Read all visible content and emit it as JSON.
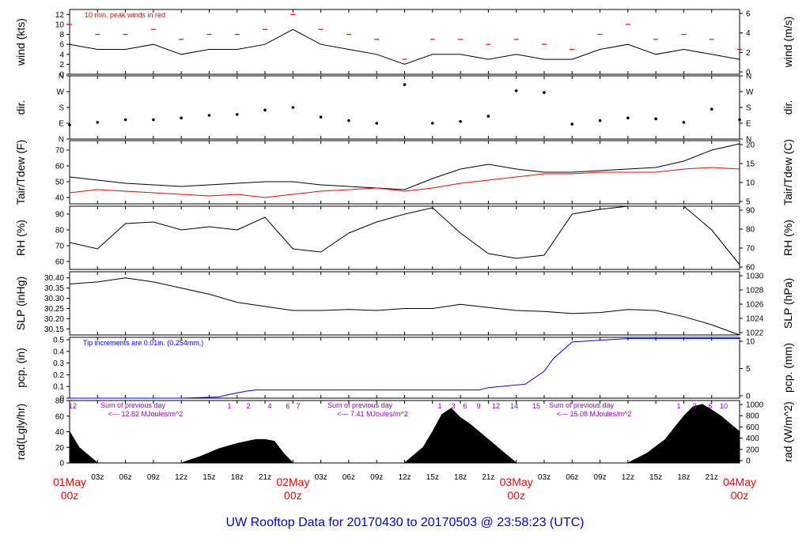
{
  "footer_title": "UW Rooftop Data for 20170430  to  20170503 @ 23:58:23  (UTC)",
  "colors": {
    "frame": "#000000",
    "wind_peak": "#ff0000",
    "dewpoint": "#ff0000",
    "precip": "#0000ff",
    "date_labels": "#ff0000",
    "radiation_notes": "#9900cc",
    "title": "#0000cc"
  },
  "chart_data": [
    {
      "type": "line",
      "panel": "wind",
      "ylabel_left": "wind (kts)",
      "ylabel_right": "wind (m/s)",
      "annotation": "10 min. peak winds in red",
      "ylim": [
        0,
        13
      ],
      "left_ticks": [
        "0",
        "2",
        "4",
        "6",
        "8",
        "10",
        "12"
      ],
      "right_ticks": [
        "0",
        "2",
        "4",
        "6"
      ],
      "series": [
        {
          "name": "wind speed (kts)",
          "color": "#000000",
          "x": [
            0,
            3,
            6,
            9,
            12,
            15,
            18,
            21,
            24,
            27,
            30,
            33,
            36,
            39,
            42,
            45,
            48,
            51,
            54,
            57,
            60,
            63,
            66,
            69,
            72
          ],
          "values": [
            6,
            5,
            5,
            6,
            4,
            5,
            5,
            6,
            9,
            6,
            5,
            4,
            2,
            4,
            4,
            3,
            4,
            3,
            3,
            5,
            6,
            4,
            5,
            4,
            3
          ]
        },
        {
          "name": "10 min peak winds (kts)",
          "color": "#ff0000",
          "x": [
            0,
            3,
            6,
            9,
            12,
            15,
            18,
            21,
            24,
            27,
            30,
            33,
            36,
            39,
            42,
            45,
            48,
            51,
            54,
            57,
            60,
            63,
            66,
            69,
            72
          ],
          "values": [
            10,
            8,
            8,
            9,
            7,
            8,
            8,
            9,
            12,
            9,
            8,
            7,
            3,
            7,
            7,
            6,
            7,
            6,
            5,
            8,
            10,
            7,
            8,
            7,
            5
          ]
        }
      ]
    },
    {
      "type": "scatter",
      "panel": "direction",
      "ylabel_left": "dir.",
      "ylabel_right": "dir.",
      "left_ticks": [
        "N",
        "E",
        "S",
        "W",
        "N"
      ],
      "right_ticks": [
        "N",
        "E",
        "S",
        "W",
        "N"
      ],
      "ylim": [
        0,
        360
      ],
      "series": [
        {
          "name": "wind direction (deg)",
          "color": "#000000",
          "x": [
            0,
            3,
            6,
            9,
            12,
            15,
            18,
            21,
            24,
            27,
            30,
            33,
            36,
            39,
            42,
            45,
            48,
            51,
            54,
            57,
            60,
            63,
            66,
            69,
            72
          ],
          "values": [
            80,
            95,
            110,
            110,
            120,
            135,
            140,
            165,
            180,
            125,
            105,
            90,
            310,
            90,
            100,
            130,
            275,
            265,
            85,
            105,
            120,
            115,
            95,
            170,
            110
          ]
        }
      ]
    },
    {
      "type": "line",
      "panel": "temperature",
      "ylabel_left": "Tair/Tdew (F)",
      "ylabel_right": "Tair/Tdew (C)",
      "ylim": [
        36,
        76
      ],
      "left_ticks": [
        "40",
        "50",
        "60",
        "70"
      ],
      "right_ticks": [
        "5",
        "10",
        "15",
        "20"
      ],
      "series": [
        {
          "name": "Tair (F)",
          "color": "#000000",
          "x": [
            0,
            3,
            6,
            9,
            12,
            15,
            18,
            21,
            24,
            27,
            30,
            33,
            36,
            39,
            42,
            45,
            48,
            51,
            54,
            57,
            60,
            63,
            66,
            69,
            72
          ],
          "values": [
            53,
            51,
            49,
            48,
            47,
            48,
            49,
            50,
            50,
            48,
            47,
            46,
            45,
            52,
            58,
            61,
            58,
            56,
            56,
            57,
            58,
            59,
            63,
            70,
            74
          ]
        },
        {
          "name": "Tdew (F)",
          "color": "#ff0000",
          "x": [
            0,
            3,
            6,
            9,
            12,
            15,
            18,
            21,
            24,
            27,
            30,
            33,
            36,
            39,
            42,
            45,
            48,
            51,
            54,
            57,
            60,
            63,
            66,
            69,
            72
          ],
          "values": [
            43,
            45,
            44,
            43,
            42,
            41,
            42,
            40,
            42,
            44,
            45,
            46,
            44,
            46,
            49,
            51,
            53,
            55,
            55,
            56,
            56,
            56,
            58,
            59,
            58
          ]
        }
      ]
    },
    {
      "type": "line",
      "panel": "humidity",
      "ylabel_left": "RH (%)",
      "ylabel_right": "RH (%)",
      "ylim": [
        55,
        95
      ],
      "left_ticks": [
        "60",
        "70",
        "80",
        "90"
      ],
      "right_ticks": [
        "60",
        "70",
        "80",
        "90"
      ],
      "series": [
        {
          "name": "relative humidity (%)",
          "color": "#000000",
          "x": [
            0,
            3,
            6,
            9,
            12,
            15,
            18,
            21,
            24,
            27,
            30,
            33,
            36,
            39,
            42,
            45,
            48,
            51,
            54,
            57,
            60,
            63,
            66,
            69,
            72
          ],
          "values": [
            72,
            68,
            84,
            85,
            80,
            82,
            80,
            88,
            68,
            66,
            78,
            85,
            90,
            94,
            78,
            65,
            62,
            64,
            90,
            93,
            95,
            95,
            95,
            80,
            58
          ]
        }
      ]
    },
    {
      "type": "line",
      "panel": "pressure",
      "ylabel_left": "SLP (inHg)",
      "ylabel_right": "SLP (hPa)",
      "ylim": [
        30.12,
        30.43
      ],
      "left_ticks": [
        "30.15",
        "30.20",
        "30.25",
        "30.30",
        "30.35",
        "30.40"
      ],
      "right_ticks": [
        "1022",
        "1024",
        "1026",
        "1028",
        "1030"
      ],
      "series": [
        {
          "name": "sea level pressure (inHg)",
          "color": "#000000",
          "x": [
            0,
            3,
            6,
            9,
            12,
            15,
            18,
            21,
            24,
            27,
            30,
            33,
            36,
            39,
            42,
            45,
            48,
            51,
            54,
            57,
            60,
            63,
            66,
            69,
            72
          ],
          "values": [
            30.37,
            30.38,
            30.4,
            30.38,
            30.35,
            30.32,
            30.28,
            30.26,
            30.24,
            30.24,
            30.245,
            30.24,
            30.25,
            30.25,
            30.27,
            30.255,
            30.24,
            30.235,
            30.225,
            30.23,
            30.245,
            30.24,
            30.21,
            30.17,
            30.12
          ]
        }
      ]
    },
    {
      "type": "line",
      "panel": "precipitation",
      "ylabel_left": "pcp. (in)",
      "ylabel_right": "pcp. (mm)",
      "annotation": "Tip increments are 0.01in. (0.254mm.)",
      "ylim": [
        0,
        0.52
      ],
      "left_ticks": [
        "0",
        "0.1",
        "0.2",
        "0.3",
        "0.4",
        "0.5"
      ],
      "right_ticks": [
        "0",
        "5",
        "10"
      ],
      "series": [
        {
          "name": "accumulated precipitation (in)",
          "color": "#0000ff",
          "x": [
            0,
            5,
            12,
            16,
            17,
            19,
            20,
            36,
            44,
            45,
            49,
            51,
            52,
            54,
            60,
            72
          ],
          "values": [
            0,
            0,
            0,
            0.01,
            0.03,
            0.06,
            0.07,
            0.07,
            0.07,
            0.09,
            0.12,
            0.23,
            0.34,
            0.48,
            0.51,
            0.51
          ]
        }
      ]
    },
    {
      "type": "area",
      "panel": "radiation",
      "ylabel_left": "rad(Lgly/hr)",
      "ylabel_right": "rad (W/m^2)",
      "ylim": [
        0,
        80
      ],
      "left_ticks": [
        "0",
        "20",
        "40",
        "60",
        "80"
      ],
      "right_ticks": [
        "0",
        "200",
        "400",
        "600",
        "800",
        "1000"
      ],
      "notes": [
        {
          "label": "Sum of previous day",
          "value": "<--- 12.82 MJoules/m^2"
        },
        {
          "label": "Sum of previous day",
          "value": "<--- 7.41 MJoules/m^2"
        },
        {
          "label": "Sum of previous day",
          "value": "<--- 15.08 MJoules/m^2"
        }
      ],
      "hour_markers": [
        "12",
        "1",
        "2",
        "4",
        "6",
        "7",
        "1",
        "3",
        "6",
        "9",
        "12",
        "14",
        "15",
        "1",
        "3",
        "6",
        "10"
      ],
      "series": [
        {
          "name": "solar radiation (Lgly/hr)",
          "color": "#000000",
          "x": [
            0,
            1,
            2,
            3,
            12,
            14,
            16,
            18,
            20,
            21,
            22,
            23,
            24,
            36,
            38,
            39,
            40,
            41,
            42,
            43,
            44,
            45,
            46,
            48,
            60,
            62,
            64,
            65,
            66,
            67,
            68,
            69,
            70,
            71,
            72
          ],
          "values": [
            40,
            20,
            10,
            0,
            0,
            8,
            18,
            25,
            30,
            30,
            28,
            12,
            0,
            0,
            20,
            40,
            62,
            70,
            58,
            50,
            40,
            30,
            20,
            0,
            0,
            12,
            30,
            45,
            60,
            72,
            75,
            68,
            60,
            50,
            40
          ]
        }
      ]
    }
  ],
  "x_axis": {
    "range_hours": [
      0,
      72
    ],
    "tick_labels": [
      "03z",
      "06z",
      "09z",
      "12z",
      "15z",
      "18z",
      "21z",
      "03z",
      "06z",
      "09z",
      "12z",
      "15z",
      "18z",
      "21z",
      "03z",
      "06z",
      "09z",
      "12z",
      "15z",
      "18z",
      "21z"
    ],
    "day_labels": [
      {
        "date": "01May",
        "time": "00z"
      },
      {
        "date": "02May",
        "time": "00z"
      },
      {
        "date": "03May",
        "time": "00z"
      },
      {
        "date": "04May",
        "time": "00z"
      }
    ]
  }
}
